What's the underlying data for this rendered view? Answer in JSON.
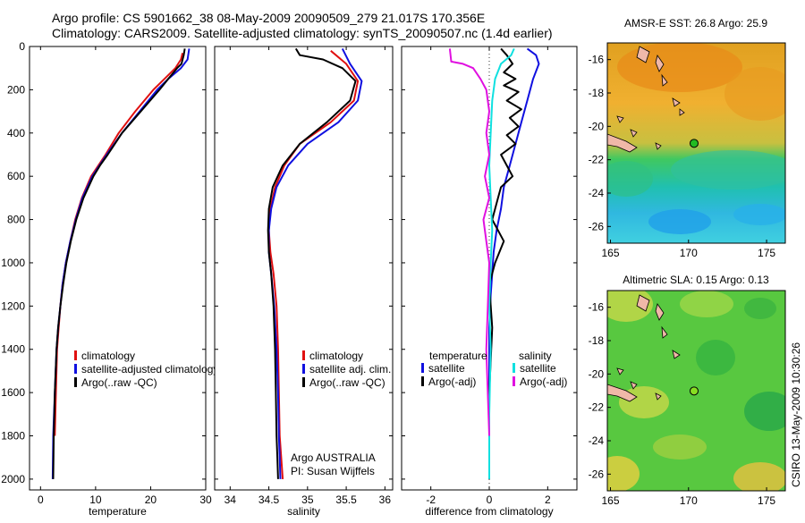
{
  "header": {
    "line1": "Argo profile: CS 5901662_38 08-May-2009 20090509_279 21.017S 170.356E",
    "line2": "Climatology: CARS2009. Satellite-adjusted climatology: synTS_20090507.nc (1.4d earlier)"
  },
  "side_label": "CSIRO 13-May-2009 10:30:26",
  "colors": {
    "red": "#e01010",
    "blue": "#1010e0",
    "black": "#000000",
    "cyan": "#10e0e0",
    "magenta": "#e010e0"
  },
  "chart_data": [
    {
      "id": "temperature",
      "type": "line",
      "xlabel": "temperature",
      "ylabel": "",
      "xlim": [
        -2,
        30
      ],
      "ylim": [
        2050,
        0
      ],
      "xticks": [
        0,
        10,
        20,
        30
      ],
      "yticks": [
        0,
        200,
        400,
        600,
        800,
        1000,
        1200,
        1400,
        1600,
        1800,
        2000
      ],
      "legend": {
        "position": "bottom-left",
        "entries": [
          "climatology",
          "satellite-adjusted climatology",
          "Argo(..raw -QC)"
        ]
      },
      "series": [
        {
          "name": "climatology",
          "color": "red",
          "width": 2,
          "x": [
            25.8,
            25.5,
            24.5,
            22.5,
            20.5,
            17.2,
            14.2,
            11.8,
            10.5,
            9.2,
            7.5,
            6.3,
            5.4,
            4.6,
            4.0,
            3.6,
            3.3,
            3.0,
            2.8,
            2.6
          ],
          "y": [
            30,
            60,
            100,
            150,
            200,
            300,
            400,
            500,
            550,
            600,
            700,
            800,
            900,
            1000,
            1100,
            1200,
            1300,
            1400,
            1600,
            1800
          ]
        },
        {
          "name": "satellite-adjusted climatology",
          "color": "blue",
          "width": 2,
          "x": [
            27.0,
            26.7,
            25.5,
            23.2,
            21.2,
            18.0,
            14.8,
            12.0,
            10.7,
            9.4,
            7.6,
            6.4,
            5.4,
            4.6,
            4.0,
            3.6,
            3.2,
            2.9,
            2.6,
            2.3,
            2.2
          ],
          "y": [
            10,
            60,
            100,
            150,
            200,
            300,
            400,
            500,
            550,
            600,
            700,
            800,
            900,
            1000,
            1100,
            1200,
            1300,
            1400,
            1600,
            1800,
            2000
          ]
        },
        {
          "name": "Argo(..raw -QC)",
          "color": "black",
          "width": 2,
          "x": [
            26.2,
            26.0,
            25.6,
            24.8,
            23.2,
            21.6,
            18.2,
            14.8,
            12.2,
            10.8,
            9.6,
            7.8,
            6.5,
            5.5,
            4.7,
            4.1,
            3.6,
            3.2,
            2.9,
            2.6,
            2.4,
            2.3
          ],
          "y": [
            10,
            40,
            80,
            100,
            150,
            200,
            300,
            400,
            500,
            550,
            600,
            700,
            800,
            900,
            1000,
            1100,
            1200,
            1300,
            1400,
            1600,
            1800,
            2000
          ]
        }
      ]
    },
    {
      "id": "salinity",
      "type": "line",
      "xlabel": "salinity",
      "ylabel": "",
      "xlim": [
        33.8,
        36.1
      ],
      "ylim": [
        2050,
        0
      ],
      "xticks": [
        34,
        34.5,
        35,
        35.5,
        36
      ],
      "xtick_labels": [
        "34",
        "34.5",
        "35",
        "35.5",
        "36"
      ],
      "legend": {
        "position": "bottom-right",
        "entries": [
          "climatology",
          "satellite adj. clim.",
          "Argo(..raw -QC)"
        ]
      },
      "annotation": [
        "Argo AUSTRALIA",
        "PI: Susan Wijffels"
      ],
      "series": [
        {
          "name": "climatology",
          "color": "red",
          "width": 2,
          "x": [
            35.3,
            35.5,
            35.65,
            35.6,
            35.3,
            34.9,
            34.7,
            34.58,
            34.52,
            34.5,
            34.52,
            34.56,
            34.6,
            34.62,
            34.63,
            34.64,
            34.66,
            34.68
          ],
          "y": [
            20,
            80,
            160,
            250,
            350,
            450,
            550,
            650,
            750,
            850,
            950,
            1050,
            1200,
            1400,
            1600,
            1800,
            1900,
            2000
          ]
        },
        {
          "name": "satellite adj. clim.",
          "color": "blue",
          "width": 2,
          "x": [
            35.45,
            35.55,
            35.7,
            35.65,
            35.4,
            35.0,
            34.75,
            34.6,
            34.53,
            34.5,
            34.5,
            34.53,
            34.57,
            34.6,
            34.62,
            34.63,
            34.64,
            34.65
          ],
          "y": [
            10,
            80,
            160,
            250,
            350,
            450,
            550,
            650,
            750,
            850,
            950,
            1050,
            1200,
            1400,
            1600,
            1800,
            1900,
            2000
          ]
        },
        {
          "name": "Argo(..raw -QC)",
          "color": "black",
          "width": 2,
          "x": [
            34.85,
            34.9,
            35.2,
            35.45,
            35.62,
            35.55,
            35.25,
            34.9,
            34.68,
            34.55,
            34.5,
            34.49,
            34.5,
            34.53,
            34.56,
            34.58,
            34.59,
            34.6,
            34.61,
            34.62
          ],
          "y": [
            10,
            40,
            60,
            100,
            160,
            250,
            350,
            450,
            550,
            650,
            750,
            850,
            950,
            1050,
            1200,
            1400,
            1600,
            1800,
            1900,
            2000
          ]
        }
      ]
    },
    {
      "id": "difference",
      "type": "line",
      "xlabel": "difference from climatology",
      "ylabel": "",
      "xlim": [
        -3,
        3
      ],
      "ylim": [
        2050,
        0
      ],
      "xticks": [
        -2,
        0,
        2
      ],
      "legend": {
        "position": "bottom",
        "groups": [
          {
            "title": "temperature",
            "entries": [
              "satellite",
              "Argo(-adj)"
            ]
          },
          {
            "title": "salinity",
            "entries": [
              "satellite",
              "Argo(-adj)"
            ]
          }
        ]
      },
      "series": [
        {
          "name": "temperature satellite",
          "color": "blue",
          "width": 2,
          "x": [
            1.3,
            1.6,
            1.7,
            1.5,
            1.3,
            1.1,
            0.9,
            0.7,
            0.5,
            0.4,
            0.25,
            0.15,
            0.1,
            0.05,
            0.0,
            0.0,
            0.0,
            0.0,
            0.0
          ],
          "y": [
            10,
            40,
            80,
            150,
            250,
            350,
            450,
            550,
            650,
            750,
            850,
            950,
            1050,
            1150,
            1300,
            1500,
            1700,
            1900,
            2000
          ]
        },
        {
          "name": "temperature Argo(-adj)",
          "color": "black",
          "width": 2,
          "x": [
            0.4,
            0.6,
            0.8,
            0.5,
            0.9,
            0.5,
            1.0,
            0.6,
            1.1,
            0.7,
            1.0,
            0.6,
            0.9,
            0.4,
            0.6,
            0.8,
            0.4,
            0.3,
            0.1,
            0.3,
            0.5,
            0.2,
            0.0,
            0.1,
            0.0,
            0.0
          ],
          "y": [
            10,
            40,
            80,
            120,
            150,
            180,
            210,
            250,
            290,
            330,
            370,
            410,
            450,
            500,
            550,
            600,
            650,
            700,
            800,
            850,
            900,
            1000,
            1100,
            1300,
            1600,
            2000
          ]
        },
        {
          "name": "salinity satellite",
          "color": "cyan",
          "width": 2,
          "x": [
            0.85,
            0.75,
            0.4,
            0.2,
            0.1,
            0.05,
            0.0,
            0.05,
            0.1,
            0.05,
            0.0,
            0.05,
            0.0,
            0.0
          ],
          "y": [
            10,
            40,
            80,
            150,
            250,
            400,
            550,
            700,
            850,
            1000,
            1200,
            1400,
            1700,
            2000
          ]
        },
        {
          "name": "salinity Argo(-adj)",
          "color": "magenta",
          "width": 2,
          "x": [
            -1.35,
            -1.3,
            -0.9,
            -0.55,
            -0.3,
            -0.1,
            0.0,
            -0.1,
            0.0,
            -0.15,
            0.0,
            -0.2,
            -0.1,
            0.0,
            -0.05,
            -0.1,
            0.0
          ],
          "y": [
            10,
            70,
            80,
            100,
            150,
            200,
            300,
            400,
            500,
            600,
            700,
            800,
            900,
            1000,
            1200,
            1400,
            1800
          ]
        }
      ]
    },
    {
      "id": "sst_map",
      "type": "heatmap",
      "title": "AMSR-E SST: 26.8 Argo: 25.9",
      "xlim": [
        164.8,
        176.2
      ],
      "ylim": [
        -27,
        -15
      ],
      "xticks": [
        165,
        170,
        175
      ],
      "yticks": [
        -16,
        -18,
        -20,
        -22,
        -24,
        -26
      ],
      "float_position": [
        170.356,
        -21.017
      ],
      "float_color": "#22bb22"
    },
    {
      "id": "sla_map",
      "type": "heatmap",
      "title": "Altimetric SLA: 0.15 Argo: 0.13",
      "xlim": [
        164.8,
        176.2
      ],
      "ylim": [
        -27,
        -15
      ],
      "xticks": [
        165,
        170,
        175
      ],
      "yticks": [
        -16,
        -18,
        -20,
        -22,
        -24,
        -26
      ],
      "float_position": [
        170.356,
        -21.017
      ],
      "float_color": "#88dd22"
    }
  ]
}
